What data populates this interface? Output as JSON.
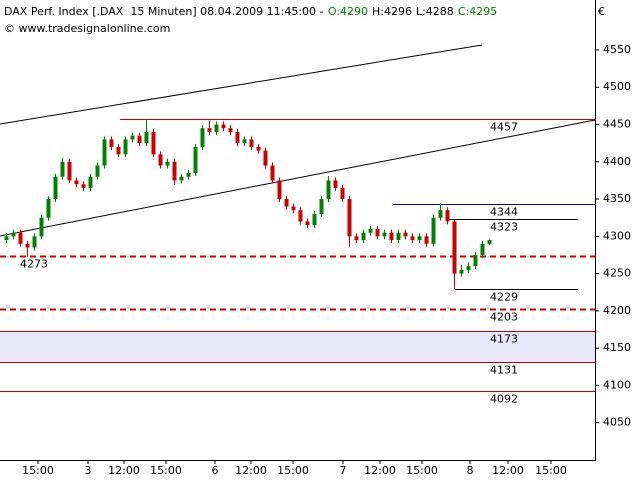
{
  "chart_data": {
    "type": "candlestick",
    "header": {
      "title": "DAX Perf. Index [.DAX  15 Minuten] 08.04.2009 11:45:00 -",
      "open": "O:4290",
      "high": "H:4296",
      "low": "L:4288",
      "close": "C:4295"
    },
    "copyright": "© www.tradesignalonline.com",
    "currency": "€",
    "ylim": [
      4000,
      4617
    ],
    "yticks": [
      4050,
      4100,
      4150,
      4200,
      4250,
      4300,
      4350,
      4400,
      4450,
      4500,
      4550
    ],
    "x_labels": [
      "15:00",
      "3",
      "12:00",
      "15:00",
      "6",
      "12:00",
      "15:00",
      "7",
      "12:00",
      "15:00",
      "8",
      "12:00",
      "15:00"
    ],
    "up_color": "#008000",
    "down_color": "#cc0000",
    "open": [
      4295,
      4300,
      4305,
      4290,
      4285,
      4300,
      4325,
      4350,
      4380,
      4400,
      4375,
      4370,
      4365,
      4380,
      4395,
      4430,
      4420,
      4410,
      4430,
      4435,
      4425,
      4440,
      4410,
      4395,
      4400,
      4375,
      4380,
      4385,
      4420,
      4445,
      4440,
      4450,
      4445,
      4440,
      4425,
      4430,
      4420,
      4415,
      4395,
      4375,
      4350,
      4340,
      4335,
      4320,
      4315,
      4330,
      4350,
      4375,
      4365,
      4350,
      4300,
      4295,
      4305,
      4310,
      4300,
      4305,
      4295,
      4305,
      4300,
      4295,
      4300,
      4290,
      4325,
      4335,
      4320,
      4250,
      4255,
      4260,
      4275,
      4290
    ],
    "high": [
      4304,
      4309,
      4309,
      4294,
      4304,
      4329,
      4354,
      4384,
      4405,
      4404,
      4379,
      4374,
      4384,
      4399,
      4434,
      4434,
      4424,
      4434,
      4439,
      4439,
      4457,
      4444,
      4414,
      4404,
      4404,
      4384,
      4389,
      4424,
      4449,
      4455,
      4454,
      4454,
      4449,
      4444,
      4434,
      4434,
      4424,
      4419,
      4399,
      4379,
      4354,
      4344,
      4339,
      4324,
      4334,
      4354,
      4381,
      4379,
      4369,
      4354,
      4304,
      4309,
      4314,
      4314,
      4309,
      4309,
      4309,
      4309,
      4304,
      4304,
      4304,
      4329,
      4344,
      4339,
      4322,
      4262,
      4265,
      4279,
      4294,
      4296
    ],
    "low": [
      4291,
      4296,
      4286,
      4273,
      4281,
      4296,
      4321,
      4346,
      4376,
      4371,
      4366,
      4361,
      4361,
      4376,
      4391,
      4416,
      4406,
      4406,
      4426,
      4421,
      4421,
      4406,
      4391,
      4391,
      4369,
      4371,
      4376,
      4381,
      4416,
      4436,
      4436,
      4441,
      4436,
      4421,
      4421,
      4416,
      4411,
      4391,
      4371,
      4346,
      4336,
      4331,
      4316,
      4311,
      4311,
      4326,
      4346,
      4361,
      4346,
      4286,
      4291,
      4291,
      4301,
      4296,
      4296,
      4291,
      4291,
      4296,
      4291,
      4291,
      4286,
      4286,
      4321,
      4316,
      4229,
      4246,
      4251,
      4256,
      4271,
      4288
    ],
    "close": [
      4300,
      4305,
      4290,
      4285,
      4300,
      4325,
      4350,
      4380,
      4400,
      4375,
      4370,
      4365,
      4380,
      4395,
      4430,
      4420,
      4410,
      4430,
      4435,
      4425,
      4440,
      4410,
      4395,
      4400,
      4375,
      4380,
      4385,
      4420,
      4445,
      4440,
      4450,
      4445,
      4440,
      4425,
      4430,
      4420,
      4415,
      4395,
      4375,
      4350,
      4340,
      4335,
      4320,
      4315,
      4330,
      4350,
      4375,
      4365,
      4350,
      4300,
      4295,
      4305,
      4310,
      4300,
      4305,
      4295,
      4305,
      4300,
      4295,
      4300,
      4290,
      4325,
      4335,
      4320,
      4250,
      4255,
      4260,
      4275,
      4290,
      4295
    ],
    "levels": [
      {
        "value": 4457,
        "color": "#cc0000",
        "dashed": false
      },
      {
        "value": 4344,
        "color": "#0000cc",
        "dashed": false
      },
      {
        "value": 4323,
        "color": "#000000",
        "dashed": false
      },
      {
        "value": 4229,
        "color": "#000000",
        "dashed": false
      },
      {
        "value": 4273,
        "color": "#cc0000",
        "dashed": true
      },
      {
        "value": 4203,
        "color": "#cc0000",
        "dashed": true
      },
      {
        "value": 4173,
        "color": "#cc0000",
        "dashed": false,
        "fill": "#e8e8fa"
      },
      {
        "value": 4131,
        "color": "#cc0000",
        "dashed": false
      },
      {
        "value": 4092,
        "color": "#cc0000",
        "dashed": false
      }
    ]
  }
}
